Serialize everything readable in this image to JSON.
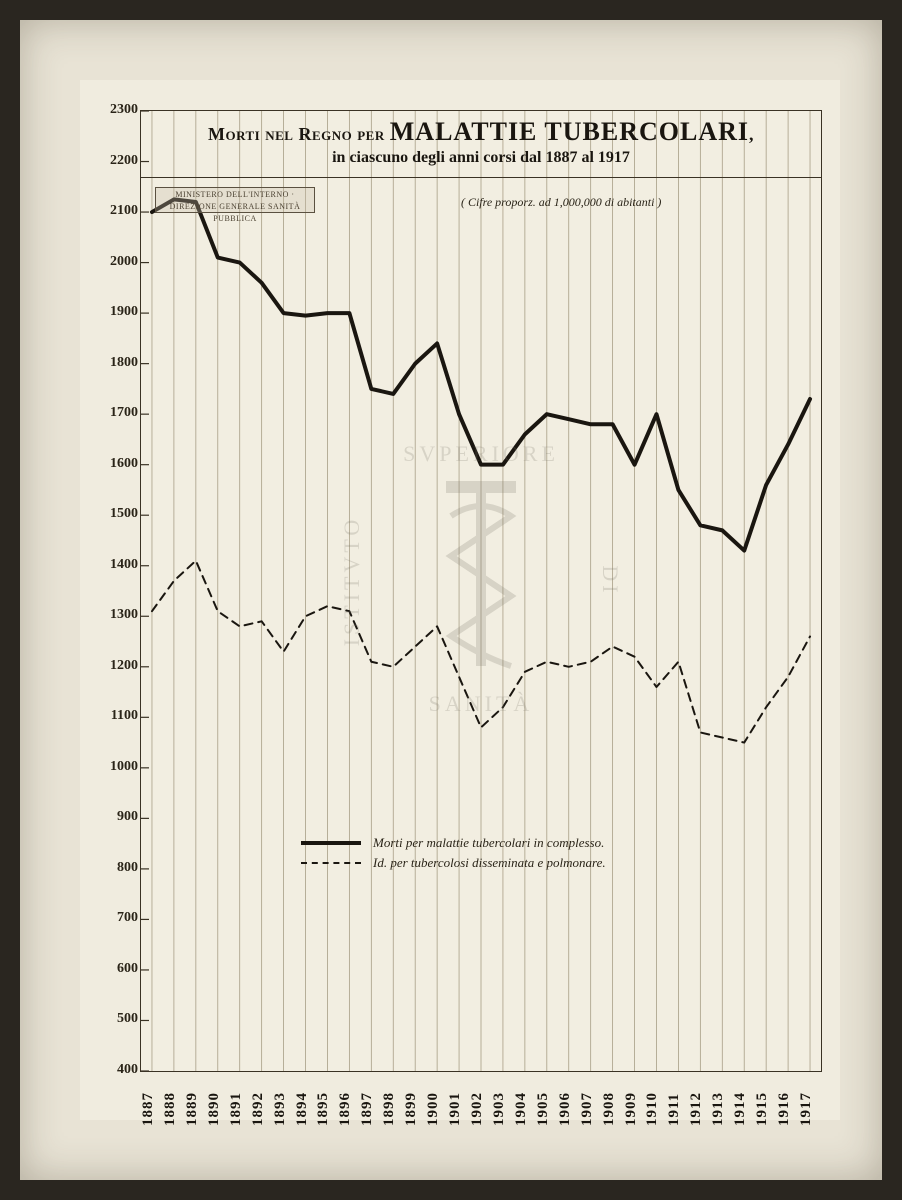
{
  "frame": {
    "outer_bg": "#2a2620",
    "photo_bg": "#e8e3d5",
    "paper_bg": "#f0ecdf"
  },
  "chart": {
    "type": "line",
    "title_line1_pre": "Morti nel Regno per ",
    "title_line1_emph": "MALATTIE TUBERCOLARI",
    "title_line1_post": ",",
    "title_line2": "in ciascuno degli anni corsi dal 1887 al 1917",
    "subtitle_note": "( Cifre proporz. ad 1,000,000 di abitanti )",
    "ministry_stamp": "MINISTERO DELL'INTERNO · DIREZIONE GENERALE SANITÀ PUBBLICA",
    "ylim": [
      400,
      2300
    ],
    "ytick_step": 100,
    "yticks": [
      400,
      500,
      600,
      700,
      800,
      900,
      1000,
      1100,
      1200,
      1300,
      1400,
      1500,
      1600,
      1700,
      1800,
      1900,
      2000,
      2100,
      2200,
      2300
    ],
    "years": [
      1887,
      1888,
      1889,
      1890,
      1891,
      1892,
      1893,
      1894,
      1895,
      1896,
      1897,
      1898,
      1899,
      1900,
      1901,
      1902,
      1903,
      1904,
      1905,
      1906,
      1907,
      1908,
      1909,
      1910,
      1911,
      1912,
      1913,
      1914,
      1915,
      1916,
      1917
    ],
    "series": [
      {
        "key": "total",
        "label": "Morti per malattie tubercolari in complesso.",
        "style": "solid",
        "color": "#1a1610",
        "line_width": 4,
        "values": [
          2100,
          2125,
          2120,
          2010,
          2000,
          1960,
          1900,
          1895,
          1900,
          1900,
          1750,
          1740,
          1800,
          1840,
          1700,
          1600,
          1600,
          1660,
          1700,
          1690,
          1680,
          1680,
          1600,
          1700,
          1550,
          1480,
          1470,
          1430,
          1560,
          1640,
          1730
        ]
      },
      {
        "key": "pulmonary",
        "label": "Id. per tubercolosi disseminata e polmonare.",
        "style": "dashed",
        "color": "#1a1610",
        "line_width": 2,
        "values": [
          1310,
          1370,
          1410,
          1310,
          1280,
          1290,
          1230,
          1300,
          1320,
          1310,
          1210,
          1200,
          1240,
          1280,
          1180,
          1080,
          1120,
          1190,
          1210,
          1200,
          1210,
          1240,
          1220,
          1160,
          1210,
          1070,
          1060,
          1050,
          1120,
          1180,
          1260
        ]
      }
    ],
    "legend_top_pct": 75,
    "grid_color": "#a89e86",
    "axis_color": "#3a3224",
    "background_color": "#f2eee1",
    "label_fontsize": 14,
    "xlabel_fontsize": 15,
    "title_fontsize": 18,
    "title_emph_fontsize": 26
  },
  "watermark": {
    "text_top": "SVPERIORE",
    "text_left": "ISTITVTO",
    "text_right": "DI",
    "text_bottom": "SANITÀ",
    "color": "#7a7568"
  }
}
